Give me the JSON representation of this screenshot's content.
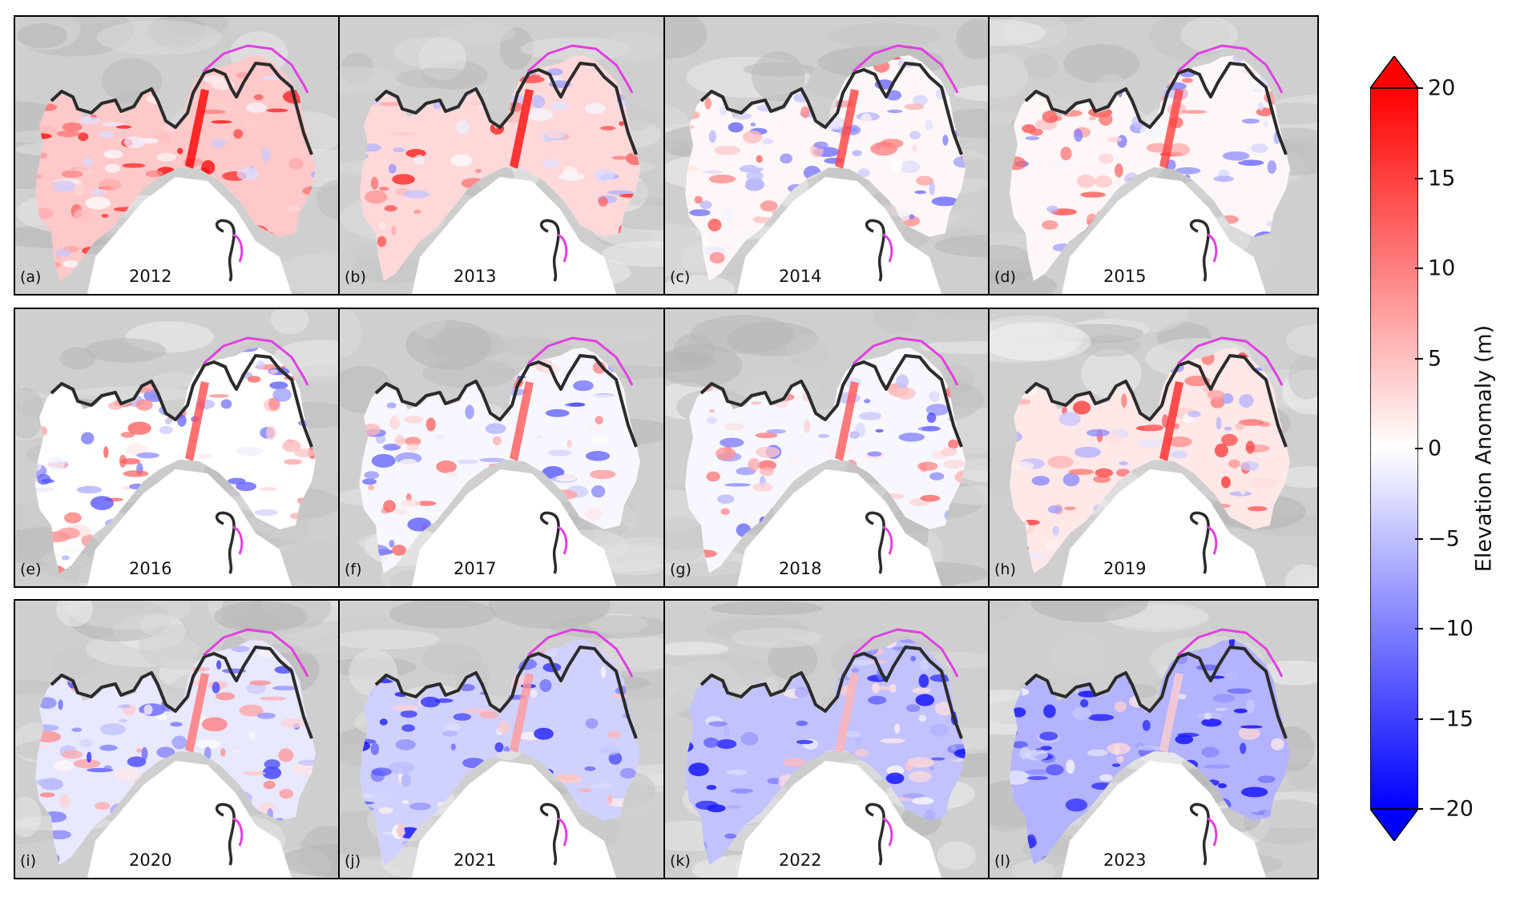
{
  "figure": {
    "panels": [
      {
        "letter": "(a)",
        "year": "2012",
        "anomaly_bias": 0.35
      },
      {
        "letter": "(b)",
        "year": "2013",
        "anomaly_bias": 0.25
      },
      {
        "letter": "(c)",
        "year": "2014",
        "anomaly_bias": 0.05
      },
      {
        "letter": "(d)",
        "year": "2015",
        "anomaly_bias": 0.05
      },
      {
        "letter": "(e)",
        "year": "2016",
        "anomaly_bias": 0.0
      },
      {
        "letter": "(f)",
        "year": "2017",
        "anomaly_bias": -0.05
      },
      {
        "letter": "(g)",
        "year": "2018",
        "anomaly_bias": -0.05
      },
      {
        "letter": "(h)",
        "year": "2019",
        "anomaly_bias": 0.15
      },
      {
        "letter": "(i)",
        "year": "2020",
        "anomaly_bias": -0.15
      },
      {
        "letter": "(j)",
        "year": "2021",
        "anomaly_bias": -0.3
      },
      {
        "letter": "(k)",
        "year": "2022",
        "anomaly_bias": -0.4
      },
      {
        "letter": "(l)",
        "year": "2023",
        "anomaly_bias": -0.5
      }
    ],
    "colorbar": {
      "label": "Elevation Anomaly (m)",
      "min": -20,
      "max": 20,
      "extend": "both",
      "colormap": [
        "#0000ff",
        "#ffffff",
        "#ff0000"
      ],
      "ticks": [
        {
          "value": 20,
          "label": "20"
        },
        {
          "value": 15,
          "label": "15"
        },
        {
          "value": 10,
          "label": "10"
        },
        {
          "value": 5,
          "label": "5"
        },
        {
          "value": 0,
          "label": "0"
        },
        {
          "value": -5,
          "label": "−5"
        },
        {
          "value": -10,
          "label": "−10"
        },
        {
          "value": -15,
          "label": "−15"
        },
        {
          "value": -20,
          "label": "−20"
        }
      ]
    },
    "colors": {
      "hillshade": "#cfcfcf",
      "outline_black": "#2b2b2b",
      "outline_magenta": "#e040e0"
    }
  }
}
